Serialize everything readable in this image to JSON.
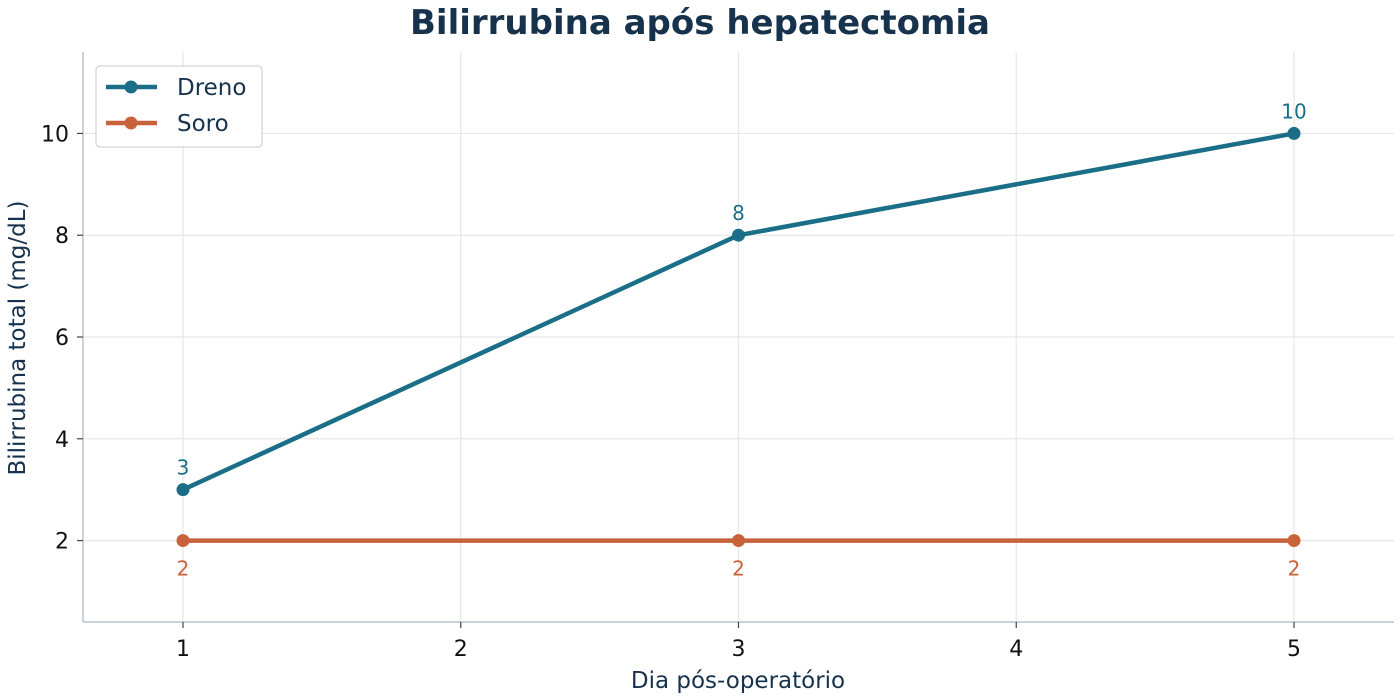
{
  "chart_data": {
    "type": "line",
    "title": "Bilirrubina após hepatectomia",
    "xlabel": "Dia pós-operatório",
    "ylabel": "Bilirrubina total (mg/dL)",
    "x_ticks": [
      1,
      2,
      3,
      4,
      5
    ],
    "y_ticks": [
      2,
      4,
      6,
      8,
      10
    ],
    "xlim": [
      0.64,
      5.36
    ],
    "ylim": [
      0.4,
      11.6
    ],
    "grid": true,
    "legend_position": "top-left",
    "series": [
      {
        "name": "Dreno",
        "color": "#1a6e87",
        "label_position": "above",
        "points": [
          {
            "x": 1,
            "y": 3
          },
          {
            "x": 3,
            "y": 8
          },
          {
            "x": 5,
            "y": 10
          }
        ]
      },
      {
        "name": "Soro",
        "color": "#c8623a",
        "label_position": "below",
        "points": [
          {
            "x": 1,
            "y": 2
          },
          {
            "x": 3,
            "y": 2
          },
          {
            "x": 5,
            "y": 2
          }
        ]
      }
    ]
  }
}
